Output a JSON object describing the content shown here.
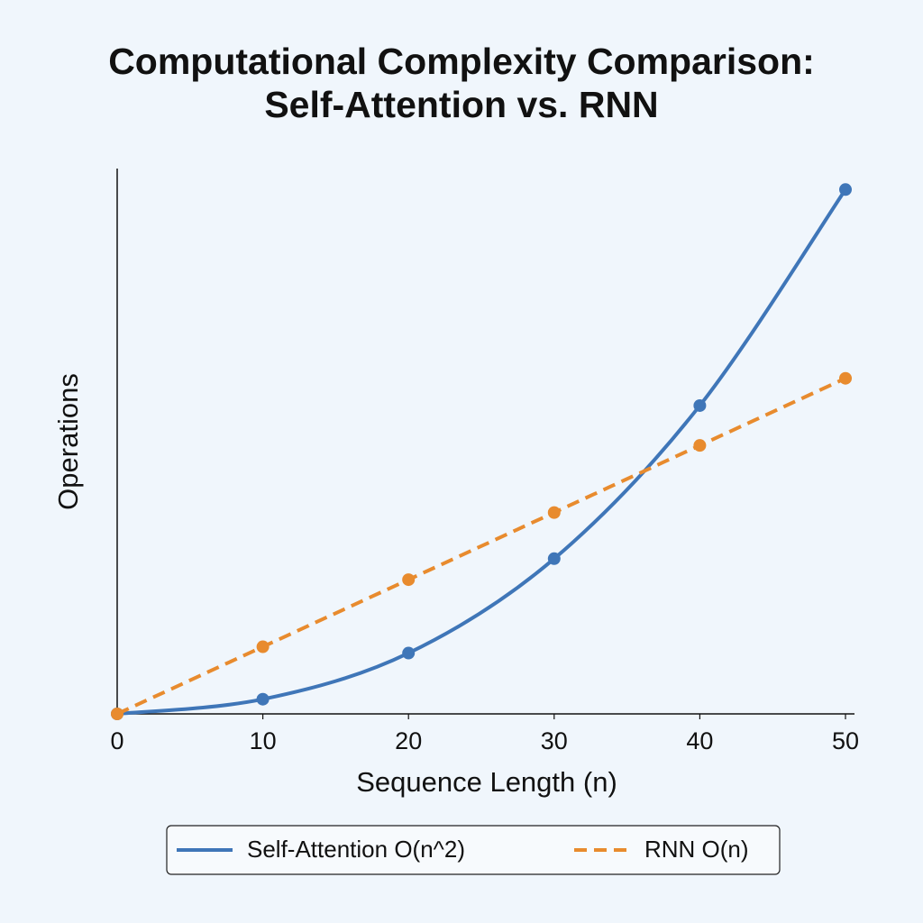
{
  "chart_data": {
    "type": "line",
    "title": "Computational Complexity Comparison: Self-Attention vs. RNN",
    "x_label": "Sequence Length (n)",
    "y_label": "Operations",
    "x": [
      0,
      10,
      20,
      30,
      40,
      50
    ],
    "series": [
      {
        "name": "Self-Attention O(n^2)",
        "color": "#3f76b8",
        "dash": false,
        "values": [
          0,
          70,
          290,
          740,
          1470,
          2500
        ]
      },
      {
        "name": "RNN O(n)",
        "color": "#e88b2e",
        "dash": true,
        "values": [
          0,
          320,
          640,
          960,
          1280,
          1600
        ]
      }
    ],
    "xlim": [
      0,
      50
    ],
    "ylim": [
      0,
      2600
    ],
    "xticks": [
      0,
      10,
      20,
      30,
      40,
      50
    ],
    "grid": false
  }
}
